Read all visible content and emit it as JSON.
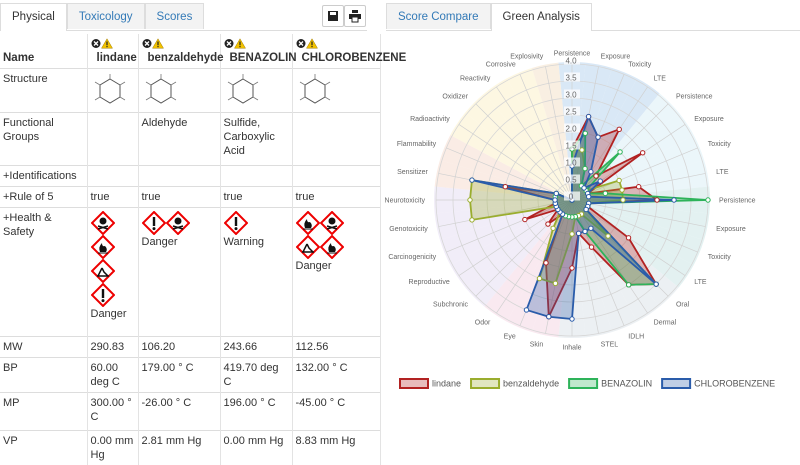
{
  "left_tabs": [
    "Physical",
    "Toxicology",
    "Scores"
  ],
  "right_tabs": [
    "Score Compare",
    "Green Analysis"
  ],
  "table": {
    "columns": [
      "Name",
      "lindane",
      "benzaldehyde",
      "BENAZOLIN",
      "CHLOROBENZENE"
    ],
    "rows": [
      {
        "label": "Structure",
        "cells": [
          null,
          null,
          null,
          null
        ]
      },
      {
        "label": "Functional Groups",
        "cells": [
          null,
          "Aldehyde",
          "Sulfide, Carboxylic Acid",
          null
        ]
      },
      {
        "label": "+Identifications",
        "cells": [
          null,
          null,
          null,
          null
        ]
      },
      {
        "label": "+Rule of 5",
        "cells": [
          "true",
          "true",
          "true",
          "true"
        ]
      },
      {
        "label": "+Health & Safety",
        "cells": [
          "Danger",
          "Danger",
          "Warning",
          "Danger"
        ]
      },
      {
        "label": "MW",
        "cells": [
          "290.83",
          "106.20",
          "243.66",
          "112.56"
        ]
      },
      {
        "label": "BP",
        "cells": [
          "60.00 deg C",
          "179.00 ° C",
          "419.70 deg C",
          "132.00 ° C"
        ]
      },
      {
        "label": "MP",
        "cells": [
          "300.00 ° C",
          "-26.00 ° C",
          "196.00 ° C",
          "-45.00 ° C"
        ]
      },
      {
        "label": "VP",
        "cells": [
          "0.00 mm Hg",
          "2.81 mm Hg",
          "0.00 mm Hg",
          "8.83 mm Hg"
        ]
      }
    ]
  },
  "chart_data": {
    "type": "radar",
    "categories": [
      "Persistence",
      "Exposure",
      "Toxicity",
      "LTE",
      "Persistence",
      "Exposure",
      "Toxicity",
      "LTE",
      "Persistence",
      "Exposure",
      "Toxicity",
      "LTE",
      "Oral",
      "Dermal",
      "IDLH",
      "STEL",
      "Inhale",
      "Skin",
      "Eye",
      "Odor",
      "Subchronic",
      "Reproductive",
      "Carcinogenicity",
      "Genotoxicity",
      "Neurotoxicity",
      "Sensitizer",
      "Flammability",
      "Radioactivity",
      "Oxidizer",
      "Reactivity",
      "Corrosive",
      "Explosivity"
    ],
    "series": [
      {
        "name": "lindane",
        "color": "#b22222",
        "values": [
          1.5,
          2.5,
          2.0,
          2.5,
          1.0,
          2.5,
          0.5,
          2.0,
          2.5,
          0.5,
          0.5,
          2.0,
          3.5,
          3.0,
          1.5,
          1.0,
          2.0,
          3.5,
          2.0,
          0.5,
          1.0,
          0.5,
          1.5,
          0.5,
          0.5,
          2.0,
          0.5,
          0,
          0,
          0,
          0,
          0
        ]
      },
      {
        "name": "benzaldehyde",
        "color": "#9aad2e",
        "values": [
          1.5,
          1.5,
          1.0,
          0.5,
          0.5,
          0.5,
          1.5,
          1.5,
          1.5,
          0.5,
          0.5,
          0.5,
          1.5,
          0.5,
          0.5,
          0.5,
          1.0,
          2.5,
          2.5,
          1.0,
          0.5,
          0.5,
          0.5,
          3.0,
          3.0,
          3.0,
          0.5,
          0,
          0,
          0,
          0,
          0
        ]
      },
      {
        "name": "BENAZOLIN",
        "color": "#2eb35a",
        "values": [
          1.5,
          2.0,
          1.0,
          0.5,
          2.0,
          0.5,
          0.5,
          1.0,
          4.0,
          0.5,
          0.5,
          0.5,
          3.5,
          3.0,
          1.0,
          0.5,
          0.5,
          0.5,
          0.5,
          0.5,
          0.5,
          0.5,
          0.5,
          0.5,
          0.5,
          0.5,
          0.5,
          0,
          0,
          0,
          0,
          0
        ]
      },
      {
        "name": "CHLOROBENZENE",
        "color": "#2a5caa",
        "values": [
          1.0,
          2.5,
          2.0,
          1.0,
          0.5,
          1.0,
          0.5,
          0.5,
          3.0,
          0.5,
          0.5,
          0.5,
          3.5,
          1.0,
          1.0,
          1.0,
          3.5,
          3.5,
          3.5,
          0.5,
          0.5,
          0.5,
          0.5,
          0.5,
          0.5,
          3.0,
          0.5,
          0,
          0,
          0,
          0,
          0
        ]
      }
    ],
    "ylim": [
      0,
      4
    ],
    "yticks": [
      0,
      0.5,
      {
        "value": 1,
        "label": "1.0"
      },
      1.5,
      {
        "value": 2,
        "label": "2.0"
      },
      2.5,
      {
        "value": 3,
        "label": "3.0"
      },
      3.5,
      {
        "value": 4,
        "label": "4.0"
      }
    ],
    "legend": "bottom"
  }
}
